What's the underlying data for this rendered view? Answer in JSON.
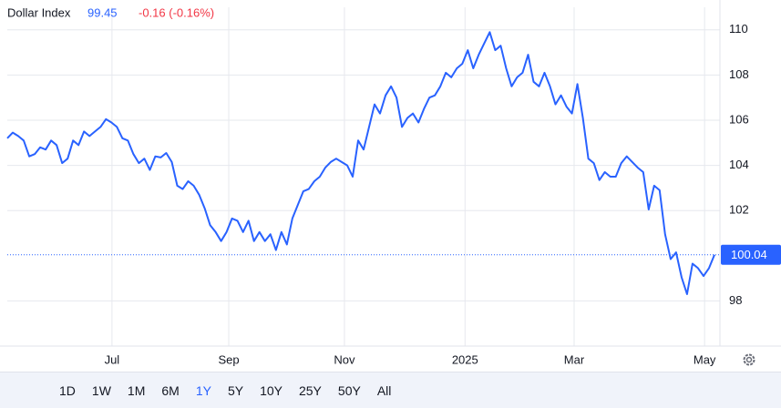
{
  "header": {
    "change": "-0.16 (-0.16%)"
  },
  "chart_data": {
    "type": "line",
    "title": "Dollar Index",
    "color": "#2962ff",
    "values": [
      105.2,
      105.45,
      105.3,
      105.1,
      104.4,
      104.5,
      104.8,
      104.7,
      105.1,
      104.9,
      104.1,
      104.3,
      105.1,
      104.9,
      105.5,
      105.3,
      105.5,
      105.7,
      106.05,
      105.9,
      105.7,
      105.2,
      105.1,
      104.5,
      104.1,
      104.3,
      103.8,
      104.4,
      104.35,
      104.55,
      104.15,
      103.1,
      102.95,
      103.3,
      103.1,
      102.7,
      102.1,
      101.35,
      101.05,
      100.65,
      101.05,
      101.65,
      101.55,
      101.05,
      101.55,
      100.65,
      101.05,
      100.65,
      100.95,
      100.25,
      101.05,
      100.5,
      101.65,
      102.25,
      102.85,
      102.95,
      103.3,
      103.5,
      103.9,
      104.15,
      104.3,
      104.15,
      104.0,
      103.5,
      105.1,
      104.7,
      105.7,
      106.7,
      106.3,
      107.1,
      107.5,
      107.0,
      105.7,
      106.1,
      106.3,
      105.9,
      106.5,
      107.0,
      107.1,
      107.5,
      108.1,
      107.9,
      108.3,
      108.5,
      109.1,
      108.3,
      108.9,
      109.4,
      109.9,
      109.1,
      109.3,
      108.3,
      107.5,
      107.9,
      108.1,
      108.9,
      107.7,
      107.5,
      108.1,
      107.5,
      106.7,
      107.1,
      106.6,
      106.3,
      107.6,
      106.1,
      104.3,
      104.1,
      103.35,
      103.7,
      103.5,
      103.5,
      104.1,
      104.4,
      104.15,
      103.9,
      103.7,
      102.05,
      103.1,
      102.9,
      100.95,
      99.85,
      100.15,
      99.05,
      98.3,
      99.65,
      99.45,
      99.1,
      99.45,
      100.04
    ],
    "xlim": [
      0,
      130
    ],
    "xticks": [
      {
        "value": 19.1,
        "label": "Jul"
      },
      {
        "value": 40.4,
        "label": "Sep"
      },
      {
        "value": 61.5,
        "label": "Nov"
      },
      {
        "value": 83.5,
        "label": "2025"
      },
      {
        "value": 103.4,
        "label": "Mar"
      },
      {
        "value": 127.2,
        "label": "May"
      }
    ],
    "ylim": [
      96,
      111
    ],
    "yticks": [
      98,
      102,
      104,
      106,
      108,
      110
    ],
    "grid": true
  },
  "range_buttons": [
    "1D",
    "1W",
    "1M",
    "6M",
    "1Y",
    "5Y",
    "10Y",
    "25Y",
    "50Y",
    "All"
  ],
  "selected_range": "1Y"
}
